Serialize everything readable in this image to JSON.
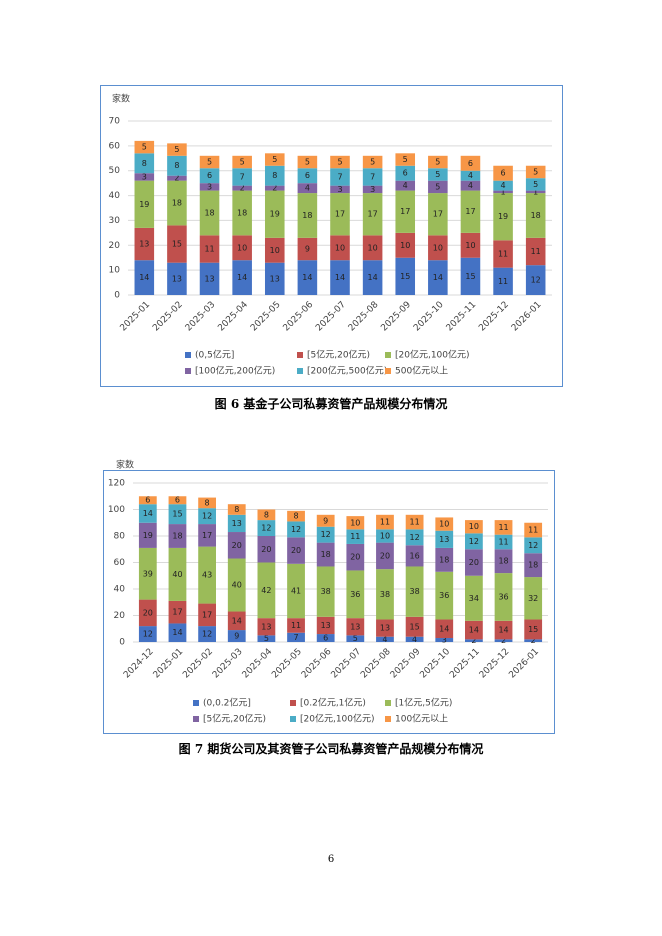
{
  "chart_data": [
    {
      "type": "bar",
      "stacked": true,
      "y_label": "家数",
      "caption": "图 6   基金子公司私募资管产品规模分布情况",
      "categories": [
        "2025-01",
        "2025-02",
        "2025-03",
        "2025-04",
        "2025-05",
        "2025-06",
        "2025-07",
        "2025-08",
        "2025-09",
        "2025-10",
        "2025-11",
        "2025-12",
        "2026-01"
      ],
      "ylim": [
        0,
        70
      ],
      "yticks": [
        0,
        10,
        20,
        30,
        40,
        50,
        60,
        70
      ],
      "grid": true,
      "series": [
        {
          "name": "(0,5亿元]",
          "color": "#4472c4",
          "values": [
            14,
            13,
            13,
            14,
            13,
            14,
            14,
            14,
            15,
            14,
            15,
            11,
            12
          ]
        },
        {
          "name": "[5亿元,20亿元)",
          "color": "#c0504d",
          "values": [
            13,
            15,
            11,
            10,
            10,
            9,
            10,
            10,
            10,
            10,
            10,
            11,
            11
          ]
        },
        {
          "name": "[20亿元,100亿元)",
          "color": "#9bbb59",
          "values": [
            19,
            18,
            18,
            18,
            19,
            18,
            17,
            17,
            17,
            17,
            17,
            19,
            18
          ]
        },
        {
          "name": "[100亿元,200亿元)",
          "color": "#8064a2",
          "values": [
            3,
            2,
            3,
            2,
            2,
            4,
            3,
            3,
            4,
            5,
            4,
            1,
            1
          ]
        },
        {
          "name": "[200亿元,500亿元)",
          "color": "#4bacc6",
          "values": [
            8,
            8,
            6,
            7,
            8,
            6,
            7,
            7,
            6,
            5,
            4,
            4,
            5
          ]
        },
        {
          "name": "500亿元以上",
          "color": "#f79646",
          "values": [
            5,
            5,
            5,
            5,
            5,
            5,
            5,
            5,
            5,
            5,
            6,
            6,
            5
          ]
        }
      ]
    },
    {
      "type": "bar",
      "stacked": true,
      "y_label": "家数",
      "caption": "图 7   期货公司及其资管子公司私募资管产品规模分布情况",
      "categories": [
        "2024-12",
        "2025-01",
        "2025-02",
        "2025-03",
        "2025-04",
        "2025-05",
        "2025-06",
        "2025-07",
        "2025-08",
        "2025-09",
        "2025-10",
        "2025-11",
        "2025-12",
        "2026-01"
      ],
      "ylim": [
        0,
        120
      ],
      "yticks": [
        0,
        20,
        40,
        60,
        80,
        100,
        120
      ],
      "grid": true,
      "series": [
        {
          "name": "(0,0.2亿元]",
          "color": "#4472c4",
          "values": [
            12,
            14,
            12,
            9,
            5,
            7,
            6,
            5,
            4,
            4,
            3,
            2,
            2,
            2
          ]
        },
        {
          "name": "[0.2亿元,1亿元)",
          "color": "#c0504d",
          "values": [
            20,
            17,
            17,
            14,
            13,
            11,
            13,
            13,
            13,
            15,
            14,
            14,
            14,
            15
          ]
        },
        {
          "name": "[1亿元,5亿元)",
          "color": "#9bbb59",
          "values": [
            39,
            40,
            43,
            40,
            42,
            41,
            38,
            36,
            38,
            38,
            36,
            34,
            36,
            32
          ]
        },
        {
          "name": "[5亿元,20亿元)",
          "color": "#8064a2",
          "values": [
            19,
            18,
            17,
            20,
            20,
            20,
            18,
            20,
            20,
            16,
            18,
            20,
            18,
            18
          ]
        },
        {
          "name": "[20亿元,100亿元)",
          "color": "#4bacc6",
          "values": [
            14,
            15,
            12,
            13,
            12,
            12,
            12,
            11,
            10,
            12,
            13,
            12,
            11,
            12
          ]
        },
        {
          "name": "100亿元以上",
          "color": "#f79646",
          "values": [
            6,
            6,
            8,
            8,
            8,
            8,
            9,
            10,
            11,
            11,
            10,
            10,
            11,
            11
          ]
        }
      ]
    }
  ],
  "page_number": "6"
}
